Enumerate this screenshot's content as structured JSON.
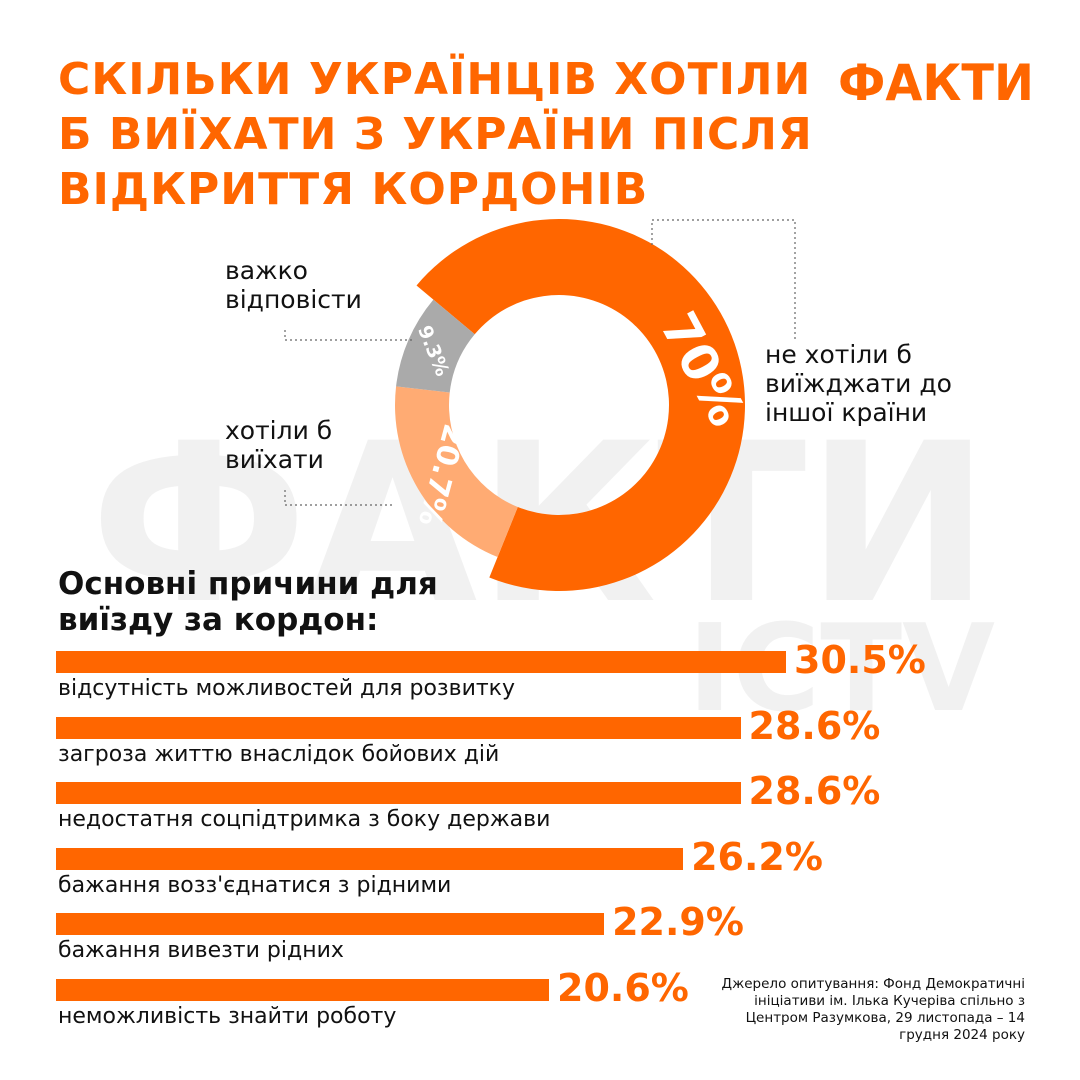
{
  "brand": {
    "logo_text": "ФАКТИ",
    "watermark_text": "ФАКТИ",
    "watermark_sub": "ICTV",
    "accent_color": "#ff6600",
    "light_accent_color": "#ffab73",
    "gray_color": "#aaaaaa"
  },
  "title": "СКІЛЬКИ УКРАЇНЦІВ ХОТІЛИ Б ВИЇХАТИ З УКРАЇНИ ПІСЛЯ ВІДКРИТТЯ КОРДОНІВ",
  "chart_data": [
    {
      "type": "pie",
      "variant": "donut",
      "slices": [
        {
          "label": "не хотіли б виїжджати до іншої країни",
          "value": 70,
          "value_label": "70%",
          "color": "#ff6600"
        },
        {
          "label": "хотіли б виїхати",
          "value": 20.7,
          "value_label": "20.7%",
          "color": "#ffab73"
        },
        {
          "label": "важко відповісти",
          "value": 9.3,
          "value_label": "9.3%",
          "color": "#aaaaaa"
        }
      ]
    },
    {
      "type": "bar",
      "orientation": "horizontal",
      "title": "Основні причини для виїзду за кордон:",
      "categories": [
        "відсутність можливостей для розвитку",
        "загроза життю внаслідок бойових дій",
        "недостатня соцпідтримка з боку держави",
        "бажання возз'єднатися з рідними",
        "бажання вивезти рідних",
        "неможливість знайти роботу"
      ],
      "values": [
        30.5,
        28.6,
        28.6,
        26.2,
        22.9,
        20.6
      ],
      "value_labels": [
        "30.5%",
        "28.6%",
        "28.6%",
        "26.2%",
        "22.9%",
        "20.6%"
      ],
      "unit": "%",
      "color": "#ff6600"
    }
  ],
  "source": "Джерело опитування: Фонд Демократичні ініціативи ім. Ілька Кучеріва спільно з Центром Разумкова, 29 листопада – 14 грудня 2024 року"
}
